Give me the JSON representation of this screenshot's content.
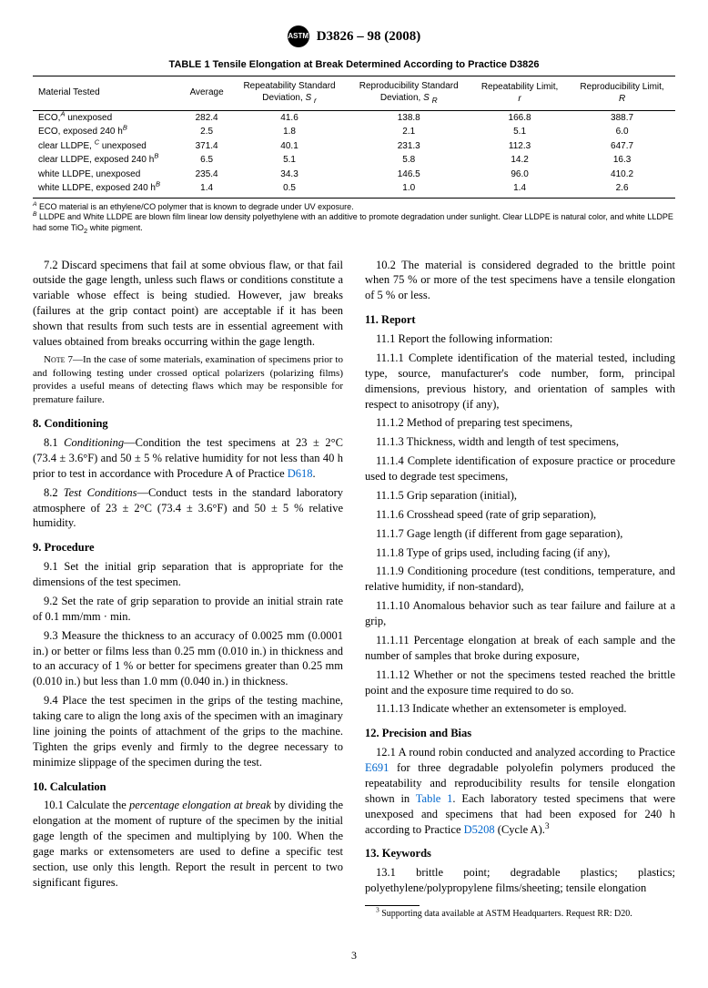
{
  "header": {
    "logo_text": "ASTM",
    "doc_id": "D3826 – 98 (2008)"
  },
  "table": {
    "title": "TABLE 1 Tensile Elongation at Break Determined According to Practice D3826",
    "columns": [
      "Material Tested",
      "Average",
      "Repeatability Standard Deviation, S r",
      "Reproducibility Standard Deviation, S R",
      "Repeatability Limit, r",
      "Reproducibility Limit, R"
    ],
    "rows": [
      {
        "label_html": "ECO,<sup><i>A</i></sup> unexposed",
        "vals": [
          "282.4",
          "41.6",
          "138.8",
          "166.8",
          "388.7"
        ]
      },
      {
        "label_html": "ECO, exposed 240 h<sup><i>B</i></sup>",
        "vals": [
          "2.5",
          "1.8",
          "2.1",
          "5.1",
          "6.0"
        ]
      },
      {
        "label_html": "clear LLDPE, <sup><i>C</i></sup> unexposed",
        "vals": [
          "371.4",
          "40.1",
          "231.3",
          "112.3",
          "647.7"
        ]
      },
      {
        "label_html": "clear LLDPE, exposed 240 h<sup><i>B</i></sup>",
        "vals": [
          "6.5",
          "5.1",
          "5.8",
          "14.2",
          "16.3"
        ]
      },
      {
        "label_html": "white LLDPE, unexposed",
        "vals": [
          "235.4",
          "34.3",
          "146.5",
          "96.0",
          "410.2"
        ]
      },
      {
        "label_html": "white LLDPE, exposed 240 h<sup><i>B</i></sup>",
        "vals": [
          "1.4",
          "0.5",
          "1.0",
          "1.4",
          "2.6"
        ]
      }
    ],
    "footnotes": [
      "<sup><i>A</i></sup> ECO material is an ethylene/CO polymer that is known to degrade under UV exposure.",
      "<sup><i>B</i></sup> LLDPE and White LLDPE are blown film linear low density polyethylene with an additive to promote degradation under sunlight. Clear LLDPE is natural color, and white LLDPE had some TiO<sub>2</sub> white pigment."
    ]
  },
  "body": {
    "p7_2": "7.2 Discard specimens that fail at some obvious flaw, or that fail outside the gage length, unless such flaws or conditions constitute a variable whose effect is being studied. However, jaw breaks (failures at the grip contact point) are acceptable if it has been shown that results from such tests are in essential agreement with values obtained from breaks occurring within the gage length.",
    "note7": "N<span class='smallcaps'>ote</span> 7—In the case of some materials, examination of specimens prior to and following testing under crossed optical polarizers (polarizing films) provides a useful means of detecting flaws which may be responsible for premature failure.",
    "h8": "8. Conditioning",
    "p8_1": "8.1 <i>Conditioning</i>—Condition the test specimens at 23 ± 2°C (73.4 ± 3.6°F) and 50 ± 5 % relative humidity for not less than 40 h prior to test in accordance with Procedure A of Practice <span class='link'>D618</span>.",
    "p8_2": "8.2 <i>Test Conditions</i>—Conduct tests in the standard laboratory atmosphere of 23 ± 2°C (73.4 ± 3.6°F) and 50 ± 5 % relative humidity.",
    "h9": "9. Procedure",
    "p9_1": "9.1 Set the initial grip separation that is appropriate for the dimensions of the test specimen.",
    "p9_2": "9.2 Set the rate of grip separation to provide an initial strain rate of 0.1 mm/mm · min.",
    "p9_3": "9.3 Measure the thickness to an accuracy of 0.0025 mm (0.0001 in.) or better or films less than 0.25 mm (0.010 in.) in thickness and to an accuracy of 1 % or better for specimens greater than 0.25 mm (0.010 in.) but less than 1.0 mm (0.040 in.) in thickness.",
    "p9_4": "9.4 Place the test specimen in the grips of the testing machine, taking care to align the long axis of the specimen with an imaginary line joining the points of attachment of the grips to the machine. Tighten the grips evenly and firmly to the degree necessary to minimize slippage of the specimen during the test.",
    "h10": "10. Calculation",
    "p10_1": "10.1 Calculate the <i>percentage elongation at break</i> by dividing the elongation at the moment of rupture of the specimen by the initial gage length of the specimen and multiplying by 100. When the gage marks or extensometers are used to define a specific test section, use only this length. Report the result in percent to two significant figures.",
    "p10_2": "10.2 The material is considered degraded to the brittle point when 75 % or more of the test specimens have a tensile elongation of 5 % or less.",
    "h11": "11. Report",
    "p11_1": "11.1 Report the following information:",
    "p11_1_1": "11.1.1 Complete identification of the material tested, including type, source, manufacturer's code number, form, principal dimensions, previous history, and orientation of samples with respect to anisotropy (if any),",
    "p11_1_2": "11.1.2 Method of preparing test specimens,",
    "p11_1_3": "11.1.3 Thickness, width and length of test specimens,",
    "p11_1_4": "11.1.4 Complete identification of exposure practice or procedure used to degrade test specimens,",
    "p11_1_5": "11.1.5 Grip separation (initial),",
    "p11_1_6": "11.1.6 Crosshead speed (rate of grip separation),",
    "p11_1_7": "11.1.7 Gage length (if different from gage separation),",
    "p11_1_8": "11.1.8 Type of grips used, including facing (if any),",
    "p11_1_9": "11.1.9 Conditioning procedure (test conditions, temperature, and relative humidity, if non-standard),",
    "p11_1_10": "11.1.10 Anomalous behavior such as tear failure and failure at a grip,",
    "p11_1_11": "11.1.11 Percentage elongation at break of each sample and the number of samples that broke during exposure,",
    "p11_1_12": "11.1.12 Whether or not the specimens tested reached the brittle point and the exposure time required to do so.",
    "p11_1_13": "11.1.13 Indicate whether an extensometer is employed.",
    "h12": "12. Precision and Bias",
    "p12_1": "12.1 A round robin conducted and analyzed according to Practice <span class='link'>E691</span> for three degradable polyolefin polymers produced the repeatability and reproducibility results for tensile elongation shown in <span class='link'>Table 1</span>. Each laboratory tested specimens that were unexposed and specimens that had been exposed for 240 h according to Practice <span class='link'>D5208</span> (Cycle A).<sup>3</sup>",
    "h13": "13. Keywords",
    "p13_1": "13.1 brittle point; degradable plastics; plastics; polyethylene/polypropylene films/sheeting; tensile elongation",
    "footnote3": "<sup>3</sup> Supporting data available at ASTM Headquarters. Request RR: D20."
  },
  "pagenum": "3"
}
